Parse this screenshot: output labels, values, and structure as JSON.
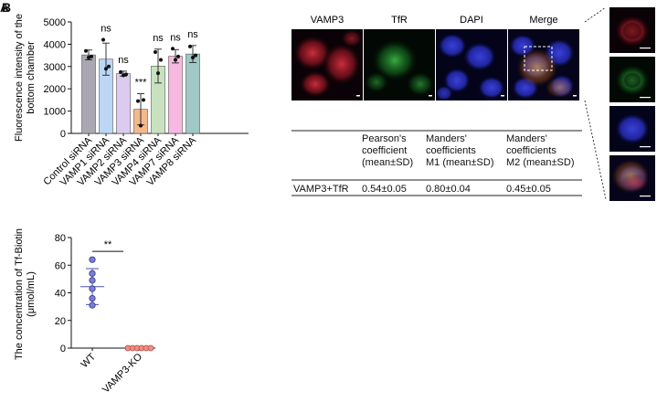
{
  "panel_letters": [
    "A",
    "B"
  ],
  "chart_data": [
    {
      "type": "bar",
      "ylabel": [
        "Fluorescence intensity of the",
        "bottom chamber"
      ],
      "ylim": [
        0,
        5000
      ],
      "yticks": [
        0,
        1000,
        2000,
        3000,
        4000,
        5000
      ],
      "categories": [
        "Control siRNA",
        "VAMP1 siRNA",
        "VAMP2 siRNA",
        "VAMP3 siRNA",
        "VAMP4 siRNA",
        "VAMP7 siRNA",
        "VAMP8 siRNA"
      ],
      "values": [
        3520,
        3330,
        2680,
        1080,
        3020,
        3460,
        3560
      ],
      "errors": [
        220,
        720,
        110,
        700,
        760,
        300,
        380
      ],
      "points": [
        [
          3700,
          3450,
          3400
        ],
        [
          4200,
          3000,
          2900
        ],
        [
          2750,
          2650,
          2600
        ],
        [
          1450,
          1500,
          350
        ],
        [
          3650,
          3300,
          2700
        ],
        [
          3800,
          3450,
          3300
        ],
        [
          3900,
          3500,
          3400
        ]
      ],
      "significance": [
        "",
        "ns",
        "ns",
        "***",
        "ns",
        "ns",
        "ns"
      ],
      "colors": [
        "#aaa7b3",
        "#bcd6f6",
        "#dccbef",
        "#f4b98a",
        "#c8e2c0",
        "#f7b9df",
        "#9fc8c6"
      ],
      "grid": false
    },
    {
      "type": "scatter",
      "ylabel": [
        "The concentration of Tf-Biotin",
        "(μmol/mL)"
      ],
      "ylim": [
        0,
        80
      ],
      "yticks": [
        0,
        20,
        40,
        60,
        80
      ],
      "categories": [
        "WT",
        "VAMP3-KO"
      ],
      "series": [
        {
          "group": "WT",
          "values": [
            64,
            54,
            49,
            43,
            36,
            31
          ],
          "mean": 44.5,
          "sd": 13,
          "color": "#7a7fd1"
        },
        {
          "group": "VAMP3-KO",
          "values": [
            0,
            0,
            0,
            0,
            0,
            0
          ],
          "mean": 0,
          "sd": 0,
          "color": "#f08f86"
        }
      ],
      "significance": "**",
      "grid": false
    }
  ],
  "micrograph": {
    "channels": [
      "VAMP3",
      "TfR",
      "DAPI",
      "Merge"
    ]
  },
  "coloc_table": {
    "headers": [
      [
        "",
        ""
      ],
      [
        "Pearson's",
        "coefficient",
        "(mean±SD)"
      ],
      [
        "Manders'",
        "coefficients",
        "M1 (mean±SD)"
      ],
      [
        "Manders'",
        "coefficients",
        "M2 (mean±SD)"
      ]
    ],
    "row": {
      "label": "VAMP3+TfR",
      "values": [
        "0.54±0.05",
        "0.80±0.04",
        "0.45±0.05"
      ]
    }
  }
}
